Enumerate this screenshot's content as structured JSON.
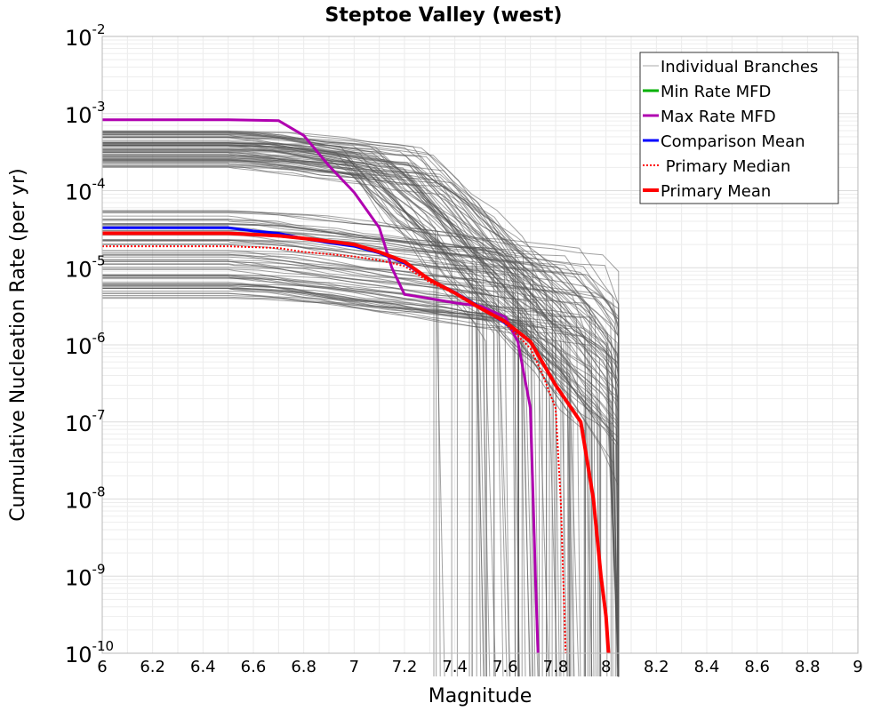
{
  "chart_data": {
    "type": "line",
    "title": "Steptoe Valley (west)",
    "xlabel": "Magnitude",
    "ylabel": "Cumulative Nucleation Rate (per yr)",
    "xlim": [
      6,
      9
    ],
    "ylim": [
      1e-10,
      0.01
    ],
    "yscale": "log",
    "grid": true,
    "legend_position": "top-right",
    "x_ticks": [
      "6",
      "6.2",
      "6.4",
      "6.6",
      "6.8",
      "7",
      "7.2",
      "7.4",
      "7.6",
      "7.8",
      "8",
      "8.2",
      "8.4",
      "8.6",
      "8.8",
      "9"
    ],
    "y_ticks": [
      {
        "base": "10",
        "exp": "-2",
        "value": 0.01
      },
      {
        "base": "10",
        "exp": "-3",
        "value": 0.001
      },
      {
        "base": "10",
        "exp": "-4",
        "value": 0.0001
      },
      {
        "base": "10",
        "exp": "-5",
        "value": 1e-05
      },
      {
        "base": "10",
        "exp": "-6",
        "value": 1e-06
      },
      {
        "base": "10",
        "exp": "-7",
        "value": 1e-07
      },
      {
        "base": "10",
        "exp": "-8",
        "value": 1e-08
      },
      {
        "base": "10",
        "exp": "-9",
        "value": 1e-09
      },
      {
        "base": "10",
        "exp": "-10",
        "value": 1e-10
      }
    ],
    "series": [
      {
        "name": "Min Rate MFD",
        "color": "#00b000",
        "style": "solid",
        "x": [],
        "y": []
      },
      {
        "name": "Max Rate MFD",
        "color": "#b000b0",
        "style": "solid",
        "x": [
          6.0,
          6.5,
          6.7,
          6.8,
          6.9,
          7.0,
          7.1,
          7.15,
          7.2,
          7.3,
          7.4,
          7.5,
          7.6,
          7.65,
          7.7,
          7.72,
          7.73
        ],
        "y": [
          0.00083,
          0.00083,
          0.00081,
          0.00052,
          0.00021,
          9.5e-05,
          3.3e-05,
          1e-05,
          4.5e-06,
          4e-06,
          3.5e-06,
          3.2e-06,
          2.3e-06,
          1.1e-06,
          1.5e-07,
          1e-09,
          1e-10
        ]
      },
      {
        "name": "Comparison Mean",
        "color": "#0000ff",
        "style": "solid",
        "x": [
          6.0,
          6.5,
          6.6,
          6.7,
          6.8,
          6.9,
          7.0,
          7.1,
          7.2,
          7.3,
          7.4,
          7.5,
          7.6,
          7.7,
          7.8,
          7.9,
          7.95,
          7.98,
          8.0,
          8.01
        ],
        "y": [
          3.3e-05,
          3.3e-05,
          3e-05,
          2.8e-05,
          2.4e-05,
          2.1e-05,
          1.9e-05,
          1.55e-05,
          1.15e-05,
          7e-06,
          4.8e-06,
          3.1e-06,
          1.9e-06,
          1.1e-06,
          3e-07,
          1e-07,
          1e-08,
          1e-09,
          3e-10,
          1e-10
        ]
      },
      {
        "name": "Primary Median",
        "color": "#ff0000",
        "style": "dotted",
        "x": [
          6.0,
          6.5,
          6.7,
          6.8,
          6.9,
          7.0,
          7.1,
          7.2,
          7.3,
          7.4,
          7.5,
          7.6,
          7.7,
          7.75,
          7.8,
          7.82,
          7.83,
          7.84
        ],
        "y": [
          1.9e-05,
          1.9e-05,
          1.8e-05,
          1.6e-05,
          1.5e-05,
          1.4e-05,
          1.25e-05,
          1.05e-05,
          6.5e-06,
          4.6e-06,
          3e-06,
          1.9e-06,
          9e-07,
          4e-07,
          1.5e-07,
          1e-08,
          1e-09,
          1e-10
        ]
      },
      {
        "name": "Primary Mean",
        "color": "#ff0000",
        "style": "solid",
        "x": [
          6.0,
          6.5,
          6.7,
          6.8,
          6.9,
          7.0,
          7.1,
          7.2,
          7.3,
          7.4,
          7.5,
          7.6,
          7.7,
          7.8,
          7.9,
          7.95,
          7.98,
          8.0,
          8.01
        ],
        "y": [
          2.8e-05,
          2.8e-05,
          2.6e-05,
          2.4e-05,
          2.2e-05,
          2e-05,
          1.6e-05,
          1.2e-05,
          7e-06,
          4.7e-06,
          3e-06,
          2e-06,
          1.1e-06,
          3e-07,
          1e-07,
          1e-08,
          1e-09,
          3e-10,
          1e-10
        ]
      }
    ],
    "branches": {
      "name": "Individual Branches",
      "color": "#555555",
      "count": 140,
      "groups": [
        {
          "rate_range": [
            0.0002,
            0.0006
          ],
          "drop_start_range": [
            6.85,
            7.3
          ]
        },
        {
          "rate_range": [
            4e-06,
            6e-05
          ],
          "drop_start_range": [
            7.4,
            7.95
          ]
        }
      ]
    },
    "legend": [
      {
        "label": "Individual Branches",
        "color": "#aaaaaa",
        "style": "thin"
      },
      {
        "label": "Min Rate MFD",
        "color": "#00b000",
        "style": "solid"
      },
      {
        "label": "Max Rate MFD",
        "color": "#b000b0",
        "style": "solid"
      },
      {
        "label": "Comparison Mean",
        "color": "#0000ff",
        "style": "solid"
      },
      {
        "label": " Primary Median",
        "color": "#ff0000",
        "style": "dotted"
      },
      {
        "label": "Primary Mean",
        "color": "#ff0000",
        "style": "thick"
      }
    ]
  }
}
